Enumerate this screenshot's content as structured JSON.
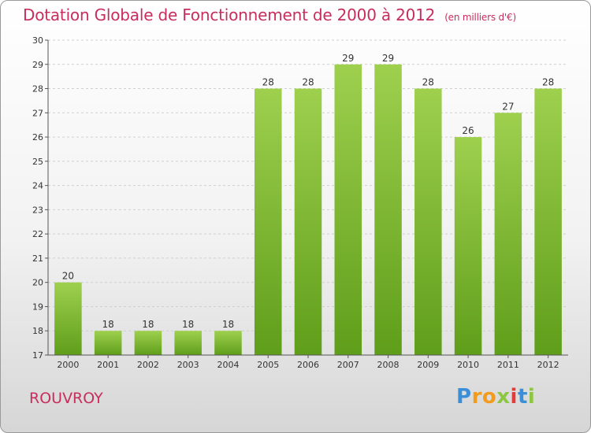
{
  "title": "Dotation Globale de Fonctionnement de 2000 à 2012",
  "unit": "(en milliers d'€)",
  "commune": "ROUVROY",
  "logo": {
    "letters": [
      "P",
      "r",
      "o",
      "x",
      "i",
      "t",
      "i"
    ]
  },
  "chart_data": {
    "type": "bar",
    "title": "Dotation Globale de Fonctionnement de 2000 à 2012",
    "subtitle": "(en milliers d'€)",
    "xlabel": "",
    "ylabel": "",
    "categories": [
      "2000",
      "2001",
      "2002",
      "2003",
      "2004",
      "2005",
      "2006",
      "2007",
      "2008",
      "2009",
      "2010",
      "2011",
      "2012"
    ],
    "values": [
      20,
      18,
      18,
      18,
      18,
      28,
      28,
      29,
      29,
      28,
      26,
      27,
      28
    ],
    "data_labels": [
      "20",
      "18",
      "18",
      "18",
      "18",
      "28",
      "28",
      "29",
      "29",
      "28",
      "26",
      "27",
      "28"
    ],
    "ylim": [
      17,
      30
    ],
    "yticks": [
      17,
      18,
      19,
      20,
      21,
      22,
      23,
      24,
      25,
      26,
      27,
      28,
      29,
      30
    ],
    "grid": true,
    "legend": "none",
    "bar_color_light": "#9ed04e",
    "bar_color_dark": "#5f9e1a"
  }
}
